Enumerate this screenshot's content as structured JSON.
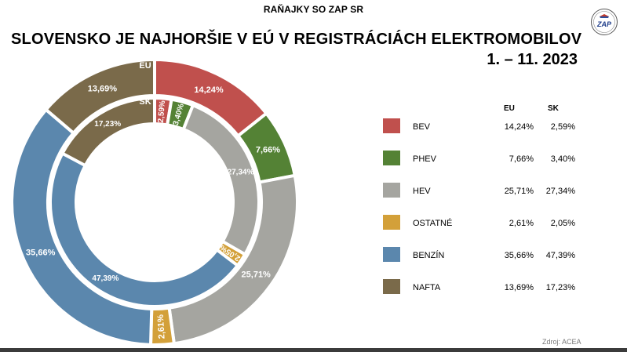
{
  "header": {
    "label": "RAŇAJKY SO ZAP SR"
  },
  "title": {
    "main": "SLOVENSKO JE NAJHORŠIE V EÚ V REGISTRÁCIÁCH ELEKTROMOBILOV",
    "period": "1. – 11. 2023"
  },
  "logo": {
    "text": "ZAP"
  },
  "ring_labels": {
    "outer": "EU",
    "inner": "SK"
  },
  "legend": {
    "col_eu": "EU",
    "col_sk": "SK"
  },
  "source": "Zdroj: ACEA",
  "chart_data": {
    "type": "pie",
    "categories": [
      "BEV",
      "PHEV",
      "HEV",
      "OSTATNÉ",
      "BENZÍN",
      "NAFTA"
    ],
    "colors": [
      "#c0504d",
      "#548235",
      "#a5a5a0",
      "#d3a039",
      "#5b87ad",
      "#7a6a4a"
    ],
    "series": [
      {
        "name": "EU",
        "values": [
          14.24,
          7.66,
          25.71,
          2.61,
          35.66,
          13.69
        ],
        "labels": [
          "14,24%",
          "7,66%",
          "25,71%",
          "2,61%",
          "35,66%",
          "13,69%"
        ]
      },
      {
        "name": "SK",
        "values": [
          2.59,
          3.4,
          27.34,
          2.05,
          47.39,
          17.23
        ],
        "labels": [
          "2,59%",
          "3,40%",
          "27,34%",
          "2,05%",
          "47,39%",
          "17,23%"
        ]
      }
    ]
  }
}
